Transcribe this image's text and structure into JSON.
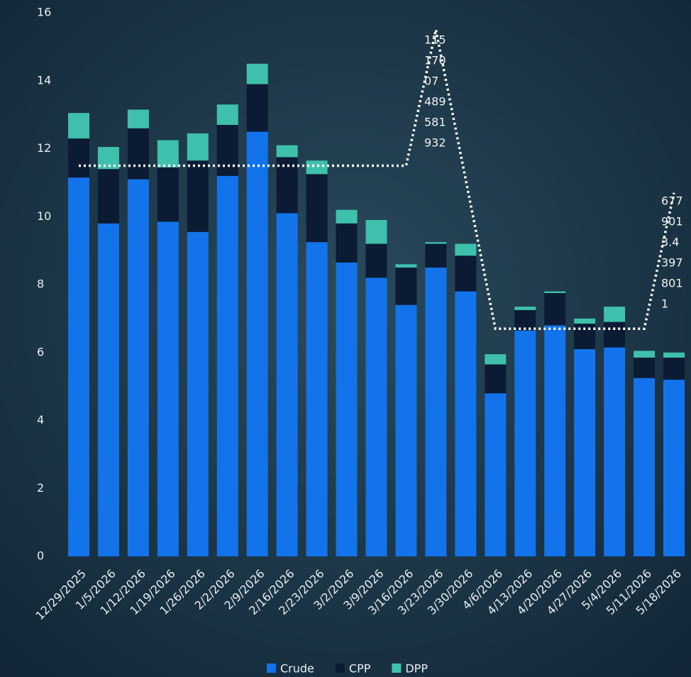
{
  "chart_data": {
    "type": "bar",
    "stacked": true,
    "categories": [
      "12/29/2025",
      "1/5/2026",
      "1/12/2026",
      "1/19/2026",
      "1/26/2026",
      "2/2/2026",
      "2/9/2026",
      "2/16/2026",
      "2/23/2026",
      "3/2/2026",
      "3/9/2026",
      "3/16/2026",
      "3/23/2026",
      "3/30/2026",
      "4/6/2026",
      "4/13/2026",
      "4/20/2026",
      "4/27/2026",
      "5/4/2026",
      "5/11/2026",
      "5/18/2026"
    ],
    "series": [
      {
        "name": "Crude",
        "color": "#1273ea",
        "values": [
          11.15,
          9.8,
          11.1,
          9.85,
          9.55,
          11.2,
          12.5,
          10.1,
          9.25,
          8.65,
          8.2,
          7.4,
          8.5,
          7.8,
          4.8,
          6.65,
          6.8,
          6.1,
          6.15,
          5.25,
          5.2
        ]
      },
      {
        "name": "CPP",
        "color": "#0b1b33",
        "values": [
          1.15,
          1.6,
          1.5,
          1.6,
          2.1,
          1.5,
          1.4,
          1.65,
          2.0,
          1.15,
          1.0,
          1.1,
          0.7,
          1.05,
          0.85,
          0.6,
          0.95,
          0.75,
          0.75,
          0.6,
          0.65
        ]
      },
      {
        "name": "DPP",
        "color": "#3fc0ac",
        "values": [
          0.75,
          0.65,
          0.55,
          0.8,
          0.8,
          0.6,
          0.6,
          0.35,
          0.4,
          0.4,
          0.7,
          0.1,
          0.05,
          0.35,
          0.3,
          0.1,
          0.05,
          0.15,
          0.45,
          0.2,
          0.15
        ]
      }
    ],
    "line": {
      "color": "#ffffff",
      "values": [
        11.5,
        11.5,
        11.5,
        11.5,
        11.5,
        11.5,
        11.5,
        11.5,
        11.5,
        11.5,
        11.5,
        11.5,
        15.5,
        11.1,
        6.7,
        6.7,
        6.7,
        6.7,
        6.7,
        6.7,
        10.7
      ]
    },
    "annotations": [
      [
        "115",
        "170",
        "07",
        "489",
        "581",
        "932"
      ],
      [
        "677",
        "901",
        "3.4",
        "397",
        "801",
        "1"
      ]
    ],
    "ylim": [
      0,
      16
    ],
    "yticks": [
      0,
      2,
      4,
      6,
      8,
      10,
      12,
      14,
      16
    ]
  }
}
